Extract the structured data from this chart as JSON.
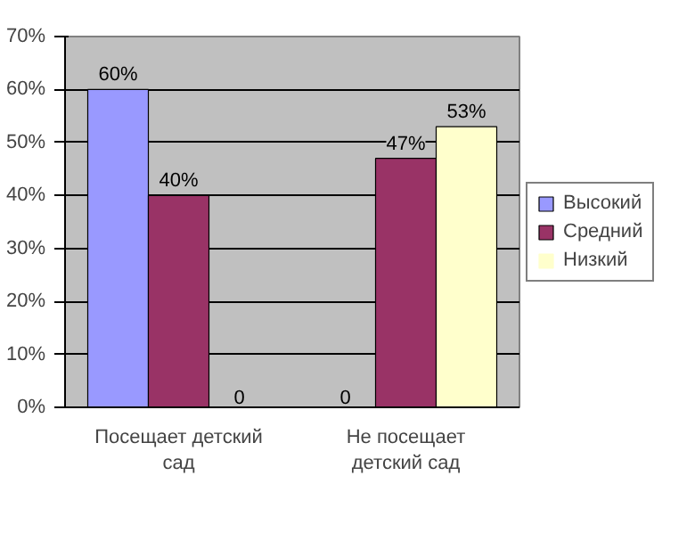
{
  "chart_data": {
    "type": "bar",
    "categories": [
      "Посещает детский сад",
      "Не посещает детский сад"
    ],
    "series": [
      {
        "name": "Высокий",
        "color": "#9999ff",
        "values": [
          60,
          0
        ],
        "value_labels": [
          "60%",
          "0"
        ]
      },
      {
        "name": "Средний",
        "color": "#993366",
        "values": [
          40,
          47
        ],
        "value_labels": [
          "40%",
          "47%"
        ]
      },
      {
        "name": "Низкий",
        "color": "#ffffcc",
        "values": [
          0,
          53
        ],
        "value_labels": [
          "0",
          "53%"
        ]
      }
    ],
    "ylim": [
      0,
      70
    ],
    "yticks": [
      {
        "value": 0,
        "label": "0%"
      },
      {
        "value": 10,
        "label": "10%"
      },
      {
        "value": 20,
        "label": "20%"
      },
      {
        "value": 30,
        "label": "30%"
      },
      {
        "value": 40,
        "label": "40%"
      },
      {
        "value": 50,
        "label": "50%"
      },
      {
        "value": 60,
        "label": "60%"
      },
      {
        "value": 70,
        "label": "70%"
      }
    ],
    "grid": "y",
    "legend": "right"
  }
}
